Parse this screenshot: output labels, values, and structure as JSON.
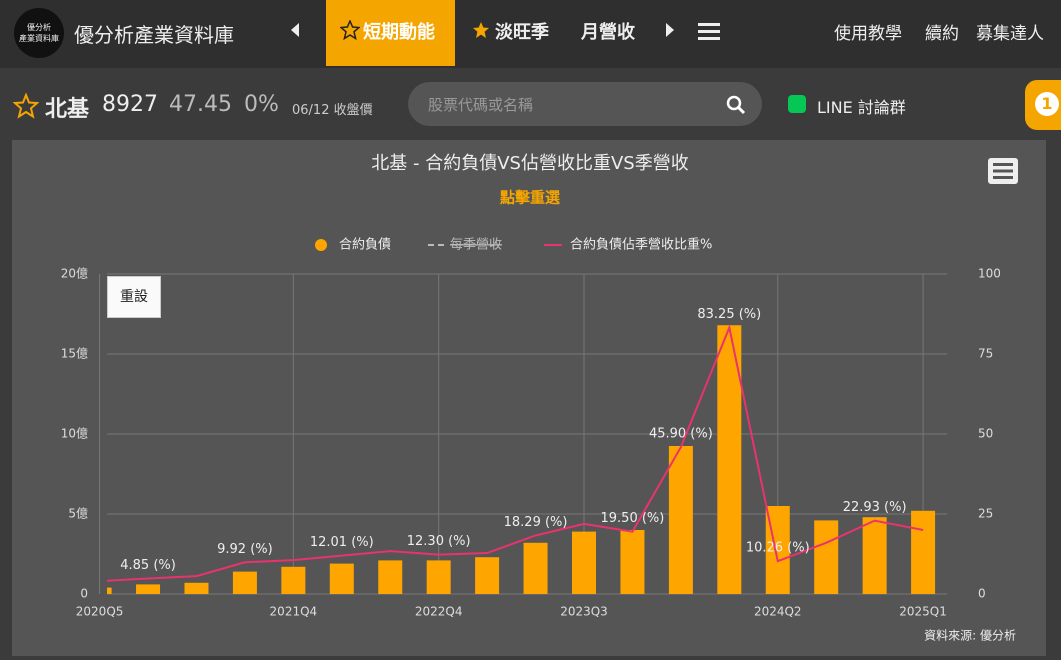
{
  "header": {
    "logo_lines": [
      "優分析",
      "產業資料庫"
    ],
    "site_name": "優分析產業資料庫",
    "nav": [
      "短期動能",
      "淡旺季",
      "月營收"
    ],
    "links": [
      "使用教學",
      "續約",
      "募集達人"
    ]
  },
  "stock": {
    "name": "北基",
    "code": "8927",
    "price": 47.45,
    "change": "0%",
    "date": "06/12 收盤價"
  },
  "search": {
    "placeholder": "股票代碼或名稱"
  },
  "line_group": "LINE 討論群",
  "badge": "1",
  "chart_data": {
    "type": "bar",
    "title": "北基 - 合約負債VS佔營收比重VS季營收",
    "subtitle": "點擊重選",
    "reset_button": "重設",
    "source": "資料來源: 優分析",
    "categories": [
      "2020Q5",
      null,
      null,
      null,
      "2021Q4",
      null,
      null,
      "2022Q4",
      null,
      null,
      "2023Q3",
      null,
      null,
      null,
      "2024Q2",
      null,
      null,
      "2025Q1"
    ],
    "series": [
      {
        "name": "合約負債",
        "type": "bar",
        "color": "#ffa500",
        "values": [
          0.4,
          0.6,
          0.7,
          1.4,
          1.7,
          1.9,
          2.1,
          2.1,
          2.3,
          3.2,
          3.9,
          4.0,
          9.25,
          16.8,
          5.5,
          4.6,
          4.8,
          5.2
        ]
      },
      {
        "name": "每季營收",
        "color": "#cccccc",
        "hidden": true
      },
      {
        "name": "合約負債佔季營收比重%",
        "type": "line",
        "axis": "y2",
        "color": "#e8336d",
        "values": [
          4.0,
          4.85,
          5.6,
          9.92,
          10.6,
          12.01,
          13.4,
          12.3,
          12.8,
          18.29,
          21.9,
          19.5,
          45.9,
          83.25,
          10.26,
          16.0,
          22.93,
          20.0
        ],
        "value_labels": [
          null,
          "4.85 (%)",
          null,
          "9.92 (%)",
          null,
          "12.01 (%)",
          null,
          "12.30 (%)",
          null,
          "18.29 (%)",
          null,
          "19.50 (%)",
          "45.90 (%)",
          "83.25 (%)",
          "10.26 (%)",
          null,
          "22.93 (%)",
          null
        ]
      }
    ],
    "ylim": [
      0,
      20
    ],
    "yticks": [
      0,
      {
        "value": 5,
        "label": "5億"
      },
      {
        "value": 10,
        "label": "10億"
      },
      {
        "value": 15,
        "label": "15億"
      },
      {
        "value": 20,
        "label": "20億"
      }
    ],
    "y2lim": [
      0,
      100
    ],
    "y2ticks": [
      0,
      25,
      50,
      75,
      100
    ],
    "grid": true
  }
}
